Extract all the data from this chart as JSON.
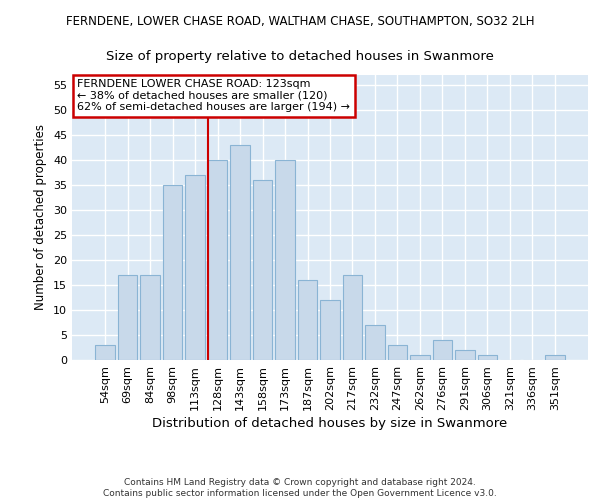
{
  "title1": "FERNDENE, LOWER CHASE ROAD, WALTHAM CHASE, SOUTHAMPTON, SO32 2LH",
  "title2": "Size of property relative to detached houses in Swanmore",
  "xlabel": "Distribution of detached houses by size in Swanmore",
  "ylabel": "Number of detached properties",
  "categories": [
    "54sqm",
    "69sqm",
    "84sqm",
    "98sqm",
    "113sqm",
    "128sqm",
    "143sqm",
    "158sqm",
    "173sqm",
    "187sqm",
    "202sqm",
    "217sqm",
    "232sqm",
    "247sqm",
    "262sqm",
    "276sqm",
    "291sqm",
    "306sqm",
    "321sqm",
    "336sqm",
    "351sqm"
  ],
  "values": [
    3,
    17,
    17,
    35,
    37,
    40,
    43,
    36,
    40,
    16,
    12,
    17,
    7,
    3,
    1,
    4,
    2,
    1,
    0,
    0,
    1
  ],
  "bar_color": "#c8d9ea",
  "bar_edge_color": "#8ab4d4",
  "annotation_text_line1": "FERNDENE LOWER CHASE ROAD: 123sqm",
  "annotation_text_line2": "← 38% of detached houses are smaller (120)",
  "annotation_text_line3": "62% of semi-detached houses are larger (194) →",
  "annotation_box_edge": "#cc0000",
  "vline_color": "#cc0000",
  "vline_index": 4.575,
  "ylim_max": 57,
  "yticks": [
    0,
    5,
    10,
    15,
    20,
    25,
    30,
    35,
    40,
    45,
    50,
    55
  ],
  "bg_color": "#dce9f5",
  "grid_color": "#ffffff",
  "title1_fontsize": 8.5,
  "title2_fontsize": 9.5,
  "xlabel_fontsize": 9.5,
  "ylabel_fontsize": 8.5,
  "tick_fontsize": 8.0,
  "footnote_line1": "Contains HM Land Registry data © Crown copyright and database right 2024.",
  "footnote_line2": "Contains public sector information licensed under the Open Government Licence v3.0."
}
